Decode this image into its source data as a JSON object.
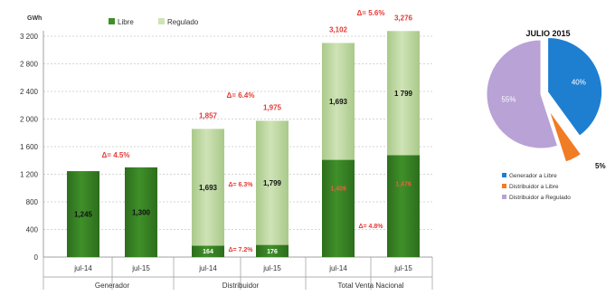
{
  "colors": {
    "libre": "#3f8f2a",
    "libre_dark": "#2d6e1c",
    "regulado": "#cfe3b6",
    "regulado_dark": "#a9c98a",
    "delta_red": "#e53935",
    "libre_value_red": "#e8623a",
    "pie_blue": "#1e7fd1",
    "pie_orange": "#f07c24",
    "pie_purple": "#b8a2d6"
  },
  "chart_data": [
    {
      "type": "bar",
      "stacked": true,
      "unit": "GWh",
      "ylim": [
        0,
        3200
      ],
      "yticks": [
        "0",
        "400",
        "800",
        "1 200",
        "1 600",
        "2 000",
        "2 400",
        "2 800",
        "3 200"
      ],
      "ytick_values": [
        0,
        400,
        800,
        1200,
        1600,
        2000,
        2400,
        2800,
        3200
      ],
      "legend": {
        "position": "top-left",
        "entries": [
          "Libre",
          "Regulado"
        ]
      },
      "groups": [
        {
          "label": "Generador",
          "categories": [
            "jul-14",
            "jul-15"
          ]
        },
        {
          "label": "Distribuidor",
          "categories": [
            "jul-14",
            "jul-15"
          ]
        },
        {
          "label": "Total Venta Nacional",
          "categories": [
            "jul-14",
            "jul-15"
          ]
        }
      ],
      "categories": [
        "jul-14",
        "jul-15",
        "jul-14",
        "jul-15",
        "jul-14",
        "jul-15"
      ],
      "series": [
        {
          "name": "Libre",
          "values": [
            1245,
            1300,
            164,
            176,
            1409,
            1476
          ],
          "labels": [
            "1,245",
            "1,300",
            "164",
            "176",
            "1,409",
            "1,476"
          ]
        },
        {
          "name": "Regulado",
          "values": [
            0,
            0,
            1693,
            1799,
            1693,
            1799
          ],
          "labels": [
            "",
            "",
            "1,693",
            "1,799",
            "1,693",
            "1 799"
          ]
        }
      ],
      "totals": [
        "",
        "",
        "1,857",
        "1,975",
        "3,102",
        "3,276"
      ],
      "annotations": {
        "group_deltas": [
          "Δ= 4.5%",
          "Δ= 6.4%",
          "Δ= 5.6%"
        ],
        "regulado_delta": "Δ= 6.3%",
        "libre_delta_distribuidor": "Δ= 7.2%",
        "libre_delta_total": "Δ= 4.8%"
      }
    },
    {
      "type": "pie",
      "title": "JULIO 2015",
      "slices": [
        {
          "name": "Generador a Libre",
          "value": 40,
          "label": "40%"
        },
        {
          "name": "Distribuidor a Libre",
          "value": 5,
          "label": "5%"
        },
        {
          "name": "Distribuidor a Regulado",
          "value": 55,
          "label": "55%"
        }
      ]
    }
  ]
}
